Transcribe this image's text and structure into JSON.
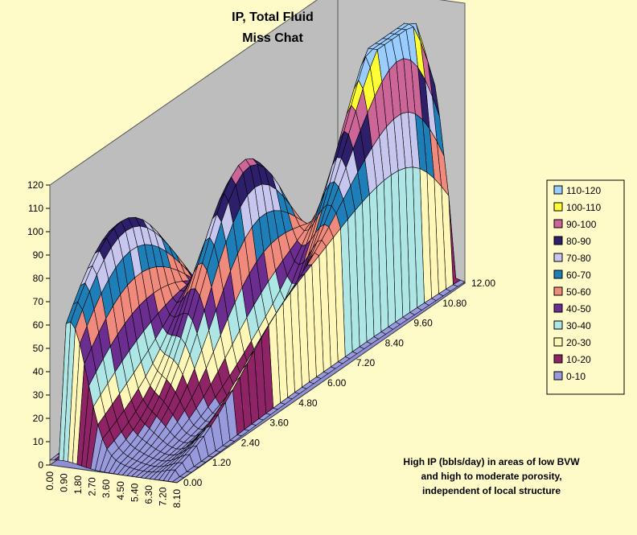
{
  "chart_data": {
    "type": "surface",
    "title": "IP, Total Fluid",
    "subtitle": "Miss Chat",
    "z_axis": {
      "ticks": [
        "0",
        "10",
        "20",
        "30",
        "40",
        "50",
        "60",
        "70",
        "80",
        "90",
        "100",
        "110",
        "120"
      ],
      "range": [
        0,
        120
      ]
    },
    "x_axis": {
      "ticks": [
        "0.00",
        "0.90",
        "1.80",
        "2.70",
        "3.60",
        "4.50",
        "5.40",
        "6.30",
        "7.20",
        "8.10"
      ],
      "range": [
        0,
        8.1
      ]
    },
    "y_axis": {
      "ticks": [
        "0.00",
        "1.20",
        "2.40",
        "3.60",
        "4.80",
        "6.00",
        "7.20",
        "8.40",
        "9.60",
        "10.80",
        "12.00"
      ],
      "range": [
        0,
        12
      ]
    },
    "legend": {
      "placement": "right",
      "bands": [
        {
          "label": "110-120",
          "color": "#99ccff"
        },
        {
          "label": "100-110",
          "color": "#ffff33"
        },
        {
          "label": "90-100",
          "color": "#cc6699"
        },
        {
          "label": "80-90",
          "color": "#2e1f6b"
        },
        {
          "label": "70-80",
          "color": "#c6c6ef"
        },
        {
          "label": "60-70",
          "color": "#1e7fb8"
        },
        {
          "label": "50-60",
          "color": "#f08a7d"
        },
        {
          "label": "40-50",
          "color": "#6b2d8f"
        },
        {
          "label": "30-40",
          "color": "#aee6e6"
        },
        {
          "label": "20-30",
          "color": "#fff7b8"
        },
        {
          "label": "10-20",
          "color": "#8e2366"
        },
        {
          "label": "0-10",
          "color": "#9999dd"
        }
      ]
    },
    "annotation": [
      "High IP (bbls/day) in areas of low BVW",
      "and high to moderate porosity,",
      "independent of local structure"
    ],
    "grid": true,
    "background": "#fffbc9",
    "wall_color": "#c0c0c0"
  }
}
